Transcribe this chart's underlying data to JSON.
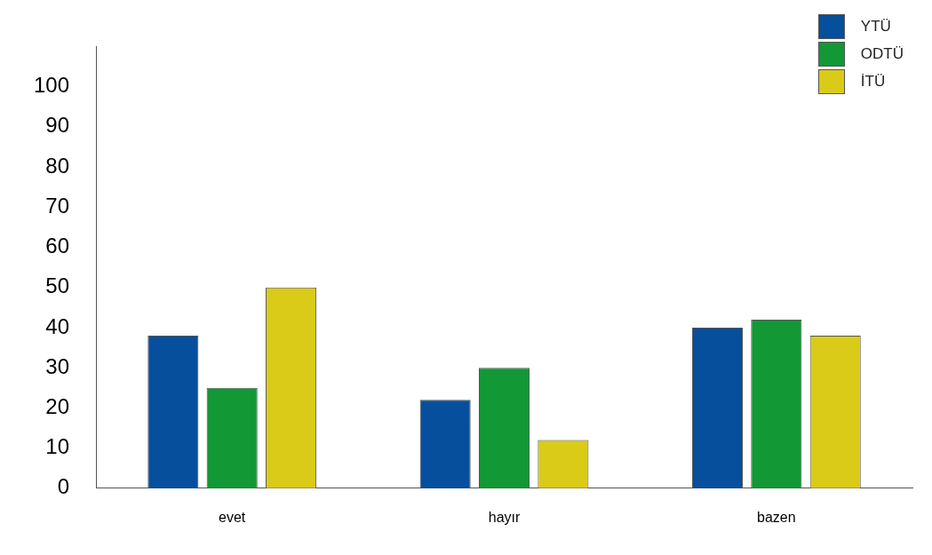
{
  "chart_data": {
    "type": "bar",
    "categories": [
      "evet",
      "hayır",
      "bazen"
    ],
    "series": [
      {
        "name": "YTÜ",
        "color": "#064f9c",
        "values": [
          38,
          22,
          40
        ]
      },
      {
        "name": "ODTÜ",
        "color": "#129834",
        "values": [
          25,
          30,
          42
        ]
      },
      {
        "name": "İTÜ",
        "color": "#d9cb18",
        "values": [
          50,
          12,
          38
        ]
      }
    ],
    "ylim": [
      0,
      110
    ],
    "yticks": [
      0,
      10,
      20,
      30,
      40,
      50,
      60,
      70,
      80,
      90,
      100
    ],
    "grid": false,
    "legend": "top right"
  }
}
